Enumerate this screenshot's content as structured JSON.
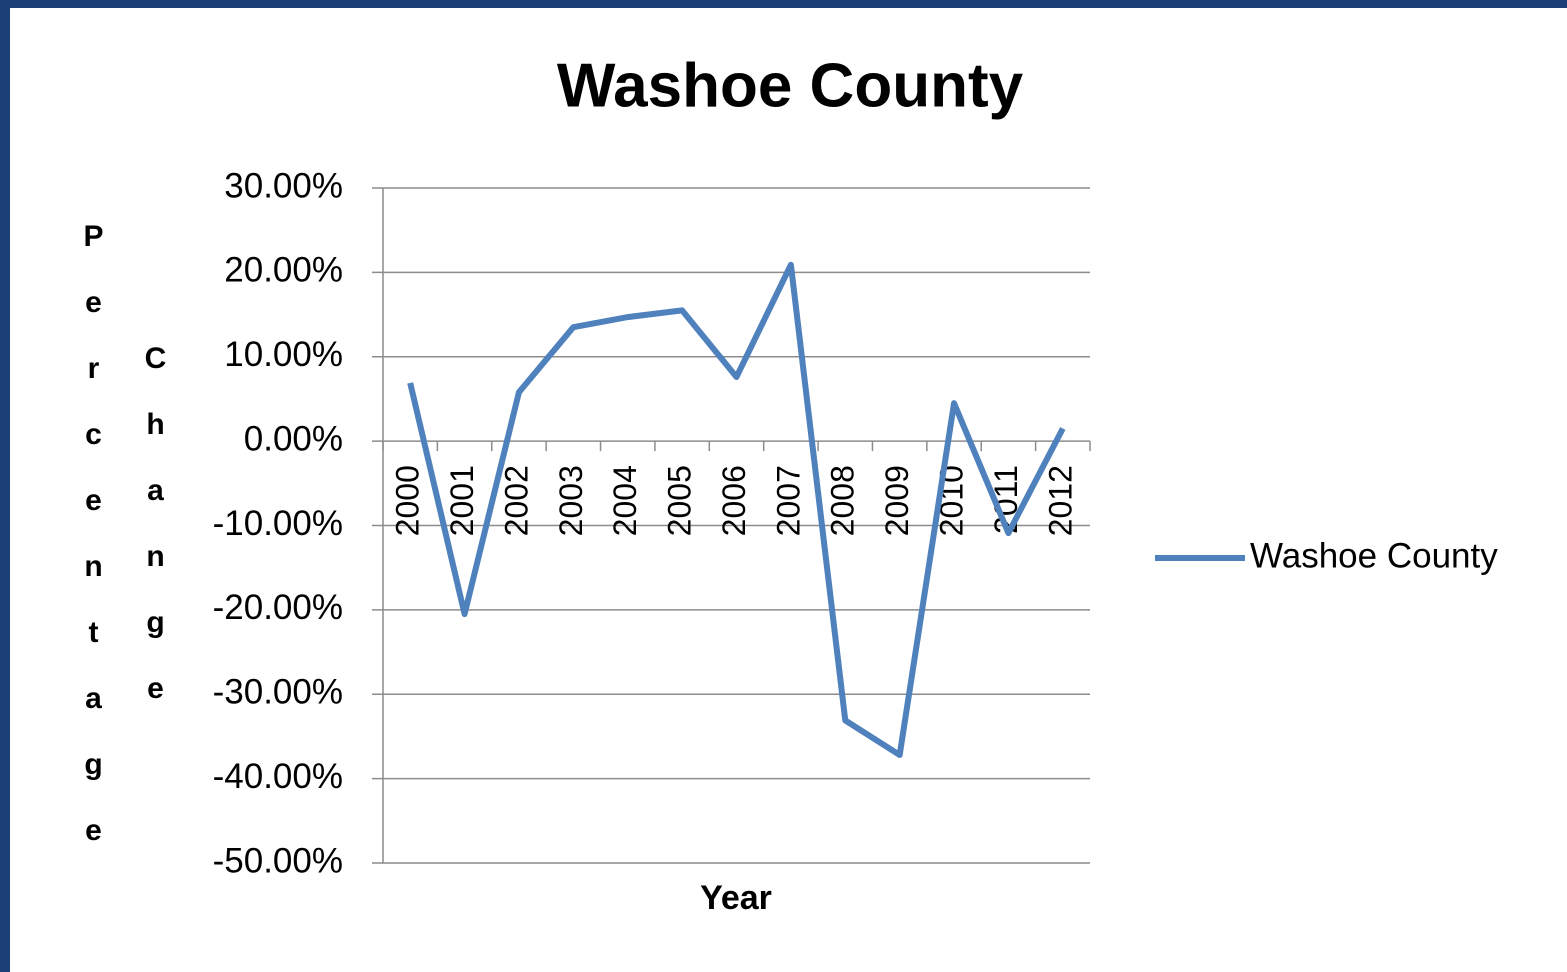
{
  "chart_data": {
    "type": "line",
    "title": "Washoe County",
    "x_label": "Year",
    "y_label": "Percentage Change",
    "categories": [
      "2000",
      "2001",
      "2002",
      "2003",
      "2004",
      "2005",
      "2006",
      "2007",
      "2008",
      "2009",
      "2010",
      "2011",
      "2012"
    ],
    "series": [
      {
        "name": "Washoe County",
        "color": "#4f81bd",
        "values": [
          6.9,
          -20.5,
          5.8,
          13.5,
          14.7,
          15.5,
          7.6,
          20.9,
          -33.1,
          -37.2,
          4.5,
          -10.9,
          1.5
        ]
      }
    ],
    "ylim": [
      -50,
      30
    ],
    "yticks": [
      {
        "value": -50,
        "label": "-50.00%"
      },
      {
        "value": -40,
        "label": "-40.00%"
      },
      {
        "value": -30,
        "label": "-30.00%"
      },
      {
        "value": -20,
        "label": "-20.00%"
      },
      {
        "value": -10,
        "label": "-10.00%"
      },
      {
        "value": 0,
        "label": "0.00%"
      },
      {
        "value": 10,
        "label": "10.00%"
      },
      {
        "value": 20,
        "label": "20.00%"
      },
      {
        "value": 30,
        "label": "30.00%"
      }
    ],
    "grid": true,
    "legend": "right"
  }
}
